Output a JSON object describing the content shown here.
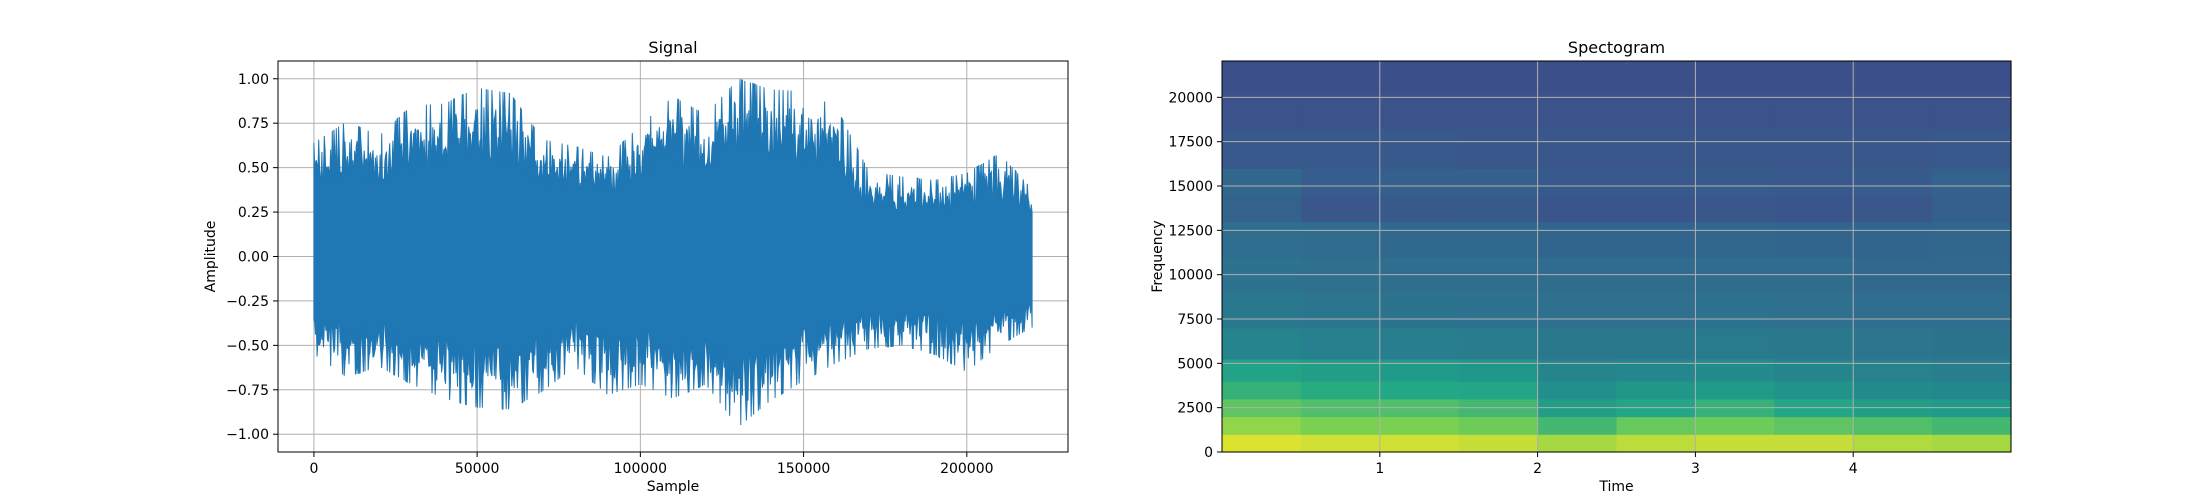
{
  "chart_data": [
    {
      "type": "line",
      "title": "Signal",
      "xlabel": "Sample",
      "ylabel": "Amplitude",
      "xlim": [
        -11000,
        231000
      ],
      "ylim": [
        -1.1,
        1.1
      ],
      "xticks": [
        0,
        50000,
        100000,
        150000,
        200000
      ],
      "xtick_labels": [
        "0",
        "50000",
        "100000",
        "150000",
        "200000"
      ],
      "yticks": [
        -1.0,
        -0.75,
        -0.5,
        -0.25,
        0.0,
        0.25,
        0.5,
        0.75,
        1.0
      ],
      "ytick_labels": [
        "−1.00",
        "−0.75",
        "−0.50",
        "−0.25",
        "0.00",
        "0.25",
        "0.50",
        "0.75",
        "1.00"
      ],
      "grid": true,
      "line_color": "#1f77b4",
      "series": [
        {
          "x": [
            0,
            10000,
            20000,
            30000,
            40000,
            50000,
            60000,
            70000,
            80000,
            90000,
            100000,
            110000,
            120000,
            130000,
            140000,
            150000,
            160000,
            170000,
            180000,
            190000,
            200000,
            210000,
            220000
          ],
          "upper": [
            0.64,
            0.76,
            0.68,
            0.85,
            0.86,
            0.95,
            0.92,
            0.66,
            0.62,
            0.56,
            0.74,
            0.9,
            0.8,
            1.0,
            0.94,
            0.93,
            0.84,
            0.48,
            0.45,
            0.43,
            0.47,
            0.58,
            0.38
          ],
          "lower": [
            -0.55,
            -0.68,
            -0.62,
            -0.72,
            -0.8,
            -0.85,
            -0.86,
            -0.76,
            -0.62,
            -0.78,
            -0.72,
            -0.8,
            -0.72,
            -0.96,
            -0.81,
            -0.7,
            -0.6,
            -0.52,
            -0.5,
            -0.55,
            -0.65,
            -0.5,
            -0.4
          ]
        }
      ]
    },
    {
      "type": "heatmap",
      "title": "Spectogram",
      "xlabel": "Time",
      "ylabel": "Frequency",
      "xlim": [
        0,
        5.0
      ],
      "ylim": [
        0,
        22050
      ],
      "xticks": [
        1,
        2,
        3,
        4
      ],
      "xtick_labels": [
        "1",
        "2",
        "3",
        "4"
      ],
      "yticks": [
        0,
        2500,
        5000,
        7500,
        10000,
        12500,
        15000,
        17500,
        20000
      ],
      "ytick_labels": [
        "0",
        "2500",
        "5000",
        "7500",
        "10000",
        "12500",
        "15000",
        "17500",
        "20000"
      ],
      "grid": true,
      "colormap": "viridis",
      "time_bins": [
        0.25,
        0.75,
        1.25,
        1.75,
        2.25,
        2.75,
        3.25,
        3.75,
        4.25,
        4.75
      ],
      "freq_bins": [
        500,
        1500,
        2500,
        3500,
        4500,
        6000,
        8000,
        10000,
        12000,
        14000,
        15000,
        17000,
        19500,
        21000
      ],
      "intensity": [
        [
          0.97,
          0.96,
          0.96,
          0.95,
          0.92,
          0.94,
          0.95,
          0.95,
          0.93,
          0.92
        ],
        [
          0.9,
          0.88,
          0.88,
          0.86,
          0.8,
          0.85,
          0.86,
          0.84,
          0.82,
          0.8
        ],
        [
          0.84,
          0.82,
          0.82,
          0.8,
          0.7,
          0.74,
          0.78,
          0.74,
          0.7,
          0.68
        ],
        [
          0.78,
          0.76,
          0.75,
          0.74,
          0.62,
          0.66,
          0.68,
          0.64,
          0.6,
          0.58
        ],
        [
          0.72,
          0.7,
          0.68,
          0.66,
          0.56,
          0.58,
          0.6,
          0.57,
          0.55,
          0.53
        ],
        [
          0.56,
          0.54,
          0.53,
          0.52,
          0.5,
          0.5,
          0.51,
          0.5,
          0.49,
          0.48
        ],
        [
          0.5,
          0.49,
          0.48,
          0.47,
          0.46,
          0.46,
          0.47,
          0.46,
          0.45,
          0.45
        ],
        [
          0.47,
          0.46,
          0.45,
          0.45,
          0.44,
          0.44,
          0.44,
          0.44,
          0.43,
          0.43
        ],
        [
          0.45,
          0.44,
          0.43,
          0.43,
          0.41,
          0.41,
          0.42,
          0.41,
          0.41,
          0.42
        ],
        [
          0.4,
          0.34,
          0.35,
          0.36,
          0.33,
          0.33,
          0.34,
          0.33,
          0.34,
          0.38
        ],
        [
          0.42,
          0.37,
          0.38,
          0.38,
          0.35,
          0.35,
          0.36,
          0.35,
          0.36,
          0.4
        ],
        [
          0.35,
          0.35,
          0.35,
          0.34,
          0.34,
          0.34,
          0.34,
          0.34,
          0.34,
          0.35
        ],
        [
          0.32,
          0.32,
          0.32,
          0.32,
          0.32,
          0.32,
          0.32,
          0.32,
          0.32,
          0.32
        ],
        [
          0.31,
          0.31,
          0.31,
          0.31,
          0.31,
          0.31,
          0.31,
          0.31,
          0.31,
          0.31
        ]
      ]
    }
  ]
}
